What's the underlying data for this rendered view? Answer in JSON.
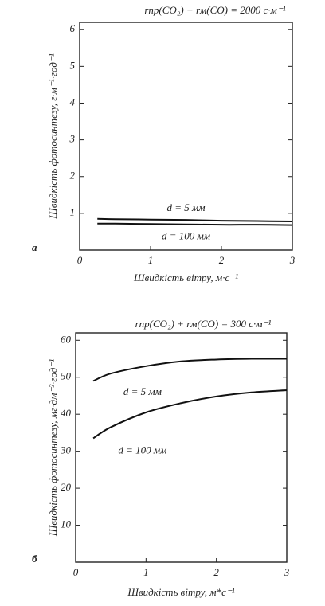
{
  "chart_data": [
    {
      "type": "line",
      "panel": "а",
      "title": "rпр(CO₂) + rм(CO) = 2000 с·м⁻¹",
      "y_label": "Швидкість фотосинтезу, г·м⁻¹·год⁻¹",
      "x_label": "Швидкість вітру, м·с⁻¹",
      "x": [
        0.25,
        0.5,
        1,
        1.5,
        2,
        2.5,
        3
      ],
      "series": [
        {
          "name": "d = 5 мм",
          "color": "#111111",
          "values": [
            0.85,
            0.84,
            0.83,
            0.82,
            0.8,
            0.79,
            0.78
          ]
        },
        {
          "name": "d = 100 мм",
          "color": "#111111",
          "values": [
            0.72,
            0.72,
            0.71,
            0.7,
            0.69,
            0.69,
            0.68
          ]
        }
      ],
      "xlim": [
        0,
        3
      ],
      "xticks": [
        0,
        1,
        2,
        3
      ],
      "ylim": [
        0,
        6.2
      ],
      "yticks": [
        1,
        2,
        3,
        4,
        5,
        6
      ]
    },
    {
      "type": "line",
      "panel": "б",
      "title": "rпр(CO₂) + rм(CO) = 300 с·м⁻¹",
      "y_label": "Швидкість фотосинтезу, мг·дм⁻²·год⁻¹",
      "x_label": "Швидкість вітру, м*с⁻¹",
      "x": [
        0.25,
        0.5,
        1,
        1.5,
        2,
        2.5,
        3
      ],
      "series": [
        {
          "name": "d = 5 мм",
          "color": "#111111",
          "values": [
            49,
            51,
            53,
            54.3,
            54.8,
            55,
            55
          ]
        },
        {
          "name": "d = 100 мм",
          "color": "#111111",
          "values": [
            33.5,
            36.5,
            40.5,
            43,
            44.8,
            45.9,
            46.5
          ]
        }
      ],
      "xlim": [
        0,
        3
      ],
      "xticks": [
        0,
        1,
        2,
        3
      ],
      "ylim": [
        0,
        62
      ],
      "yticks": [
        10,
        20,
        30,
        40,
        50,
        60
      ]
    }
  ]
}
